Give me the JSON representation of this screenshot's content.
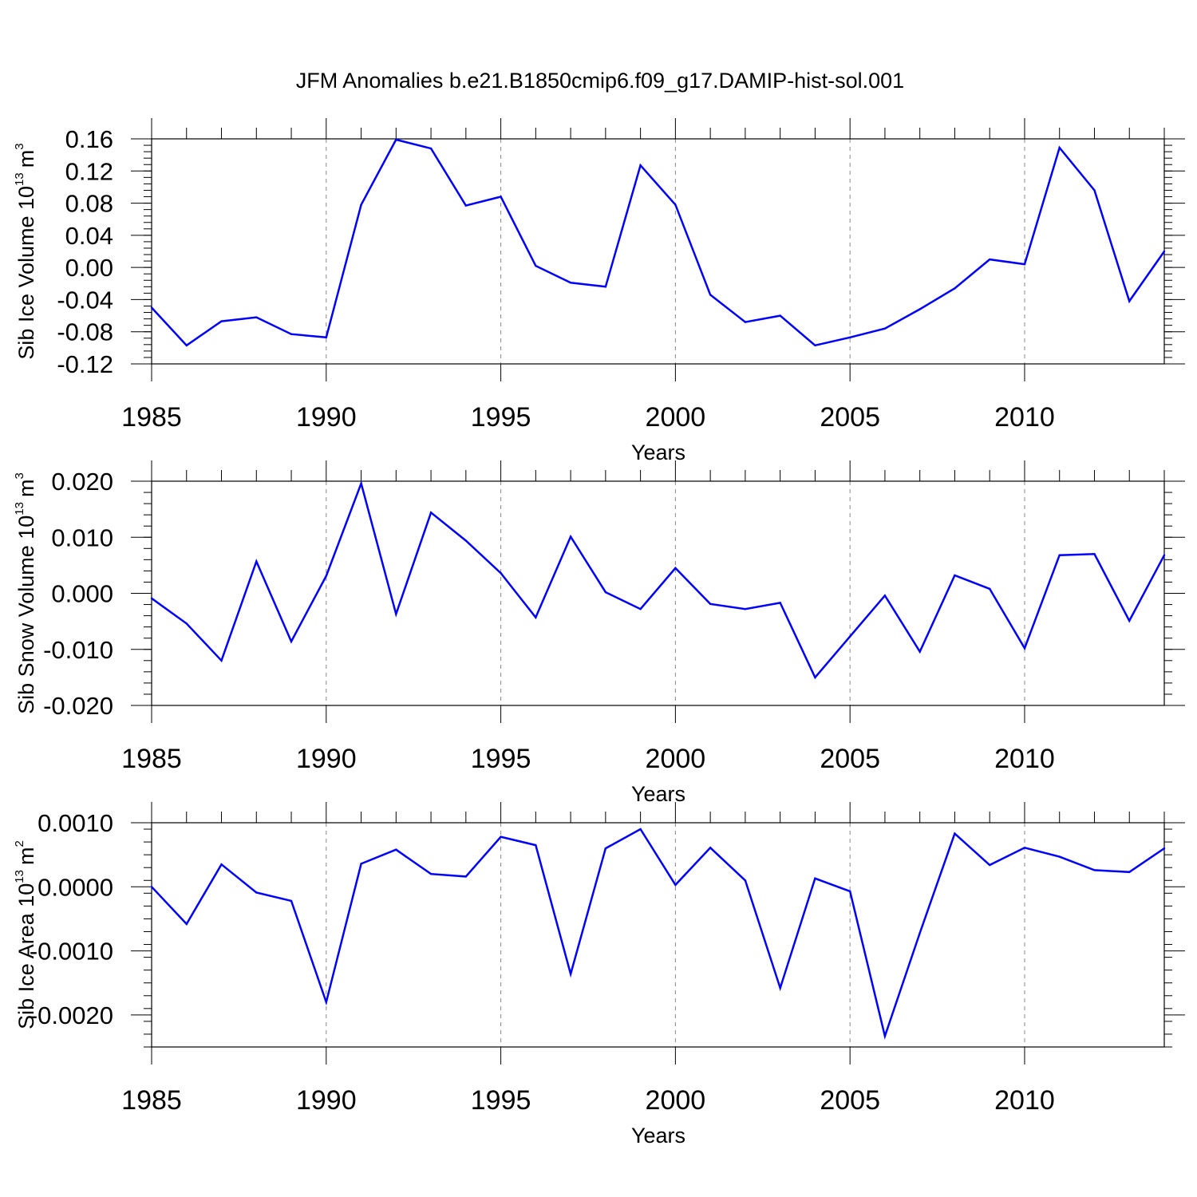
{
  "title": "JFM Anomalies b.e21.B1850cmip6.f09_g17.DAMIP-hist-sol.001",
  "colors": {
    "line": "#0000ff",
    "axis": "#000000",
    "grid": "#888888"
  },
  "chart_data": [
    {
      "type": "line",
      "name": "ice-volume",
      "ylabel": "Sib Ice Volume 10",
      "ylabel_exp": "13",
      "ylabel_unit": "m",
      "ylabel_unit_exp": "3",
      "xlabel": "Years",
      "xlim": [
        1985,
        2014
      ],
      "ylim": [
        -0.12,
        0.16
      ],
      "yticks": [
        -0.12,
        -0.08,
        -0.04,
        0.0,
        0.04,
        0.08,
        0.12,
        0.16
      ],
      "ytick_labels": [
        "-0.12",
        "-0.08",
        "-0.04",
        "0.00",
        "0.04",
        "0.08",
        "0.12",
        "0.16"
      ],
      "xticks": [
        1985,
        1990,
        1995,
        2000,
        2005,
        2010
      ],
      "xtick_labels": [
        "1985",
        "1990",
        "1995",
        "2000",
        "2005",
        "2010"
      ],
      "x": [
        1985,
        1986,
        1987,
        1988,
        1989,
        1990,
        1991,
        1992,
        1993,
        1994,
        1995,
        1996,
        1997,
        1998,
        1999,
        2000,
        2001,
        2002,
        2003,
        2004,
        2005,
        2006,
        2007,
        2008,
        2009,
        2010,
        2011,
        2012,
        2013,
        2014
      ],
      "values": [
        -0.05,
        -0.097,
        -0.067,
        -0.062,
        -0.083,
        -0.087,
        0.078,
        0.159,
        0.148,
        0.077,
        0.088,
        0.002,
        -0.019,
        -0.024,
        0.127,
        0.078,
        -0.034,
        -0.068,
        -0.06,
        -0.097,
        -0.087,
        -0.076,
        -0.052,
        -0.026,
        0.01,
        0.004,
        0.149,
        0.096,
        -0.042,
        0.02
      ]
    },
    {
      "type": "line",
      "name": "snow-volume",
      "ylabel": "Sib Snow Volume 10",
      "ylabel_exp": "13",
      "ylabel_unit": "m",
      "ylabel_unit_exp": "3",
      "xlabel": "Years",
      "xlim": [
        1985,
        2014
      ],
      "ylim": [
        -0.02,
        0.02
      ],
      "yticks": [
        -0.02,
        -0.01,
        0.0,
        0.01,
        0.02
      ],
      "ytick_labels": [
        "-0.020",
        "-0.010",
        "0.000",
        "0.010",
        "0.020"
      ],
      "xticks": [
        1985,
        1990,
        1995,
        2000,
        2005,
        2010
      ],
      "xtick_labels": [
        "1985",
        "1990",
        "1995",
        "2000",
        "2005",
        "2010"
      ],
      "x": [
        1985,
        1986,
        1987,
        1988,
        1989,
        1990,
        1991,
        1992,
        1993,
        1994,
        1995,
        1996,
        1997,
        1998,
        1999,
        2000,
        2001,
        2002,
        2003,
        2004,
        2005,
        2006,
        2007,
        2008,
        2009,
        2010,
        2011,
        2012,
        2013,
        2014
      ],
      "values": [
        -0.0009,
        -0.0054,
        -0.012,
        0.0057,
        -0.0086,
        0.0031,
        0.0196,
        -0.0037,
        0.0144,
        0.0094,
        0.0036,
        -0.0043,
        0.0101,
        0.0002,
        -0.0028,
        0.0045,
        -0.0019,
        -0.0028,
        -0.0017,
        -0.015,
        -0.0077,
        -0.0004,
        -0.0104,
        0.0032,
        0.0008,
        -0.0098,
        0.0068,
        0.007,
        -0.0049,
        0.0068
      ]
    },
    {
      "type": "line",
      "name": "ice-area",
      "ylabel": "Sib Ice Area 10",
      "ylabel_exp": "13",
      "ylabel_unit": "m",
      "ylabel_unit_exp": "2",
      "xlabel": "Years",
      "xlim": [
        1985,
        2014
      ],
      "ylim": [
        -0.0025,
        0.001
      ],
      "yticks": [
        -0.002,
        -0.001,
        0.0,
        0.001
      ],
      "ytick_labels": [
        "-0.0020",
        "-0.0010",
        "0.0000",
        "0.0010"
      ],
      "xticks": [
        1985,
        1990,
        1995,
        2000,
        2005,
        2010
      ],
      "xtick_labels": [
        "1985",
        "1990",
        "1995",
        "2000",
        "2005",
        "2010"
      ],
      "x": [
        1985,
        1986,
        1987,
        1988,
        1989,
        1990,
        1991,
        1992,
        1993,
        1994,
        1995,
        1996,
        1997,
        1998,
        1999,
        2000,
        2001,
        2002,
        2003,
        2004,
        2005,
        2006,
        2007,
        2008,
        2009,
        2010,
        2011,
        2012,
        2013,
        2014
      ],
      "values": [
        0.0,
        -0.00058,
        0.00035,
        -9e-05,
        -0.00022,
        -0.0018,
        0.00036,
        0.00058,
        0.0002,
        0.00016,
        0.00078,
        0.00065,
        -0.00136,
        0.0006,
        0.0009,
        3e-05,
        0.00061,
        0.0001,
        -0.00158,
        0.00013,
        -7e-05,
        -0.00233,
        -0.00072,
        0.00083,
        0.00034,
        0.00061,
        0.00047,
        0.00026,
        0.00023,
        0.0006
      ]
    }
  ]
}
